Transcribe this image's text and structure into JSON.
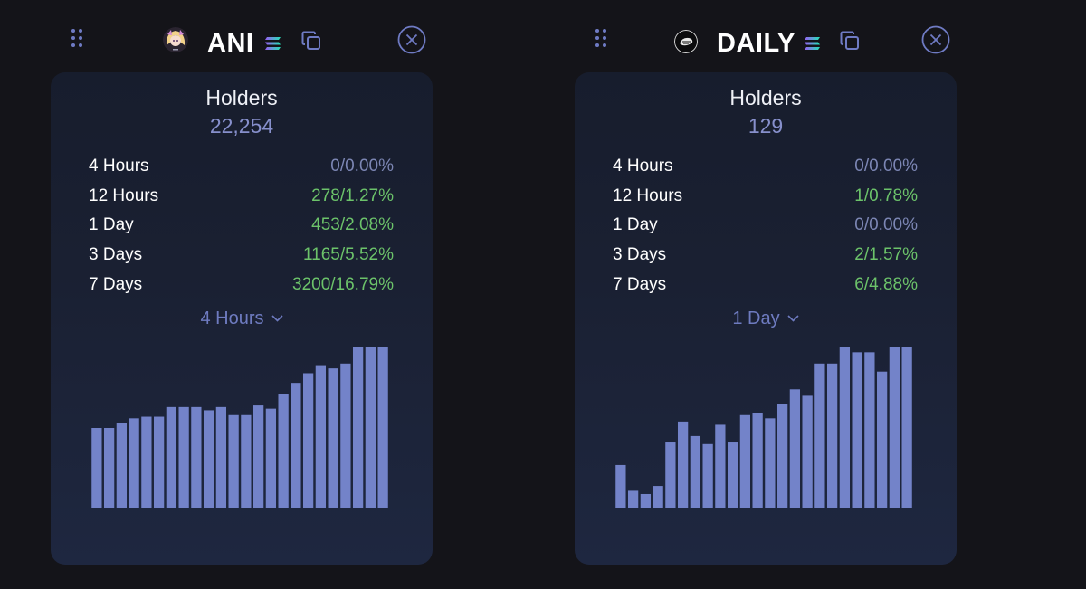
{
  "colors": {
    "background": "#141419",
    "card": "#1a2032",
    "bar": "#7383c9",
    "positive": "#6cc36a",
    "neutral": "#7c86b4",
    "accent": "#6e7bc0"
  },
  "cards": [
    {
      "token": "ANI",
      "avatar_icon": "anime-girl-avatar-icon",
      "chain_icon": "solana-icon",
      "holders_label": "Holders",
      "holders": "22,254",
      "stats": [
        {
          "period": "4 Hours",
          "value": "0/0.00%",
          "status": "neutral"
        },
        {
          "period": "12 Hours",
          "value": "278/1.27%",
          "status": "positive"
        },
        {
          "period": "1 Day",
          "value": "453/2.08%",
          "status": "positive"
        },
        {
          "period": "3 Days",
          "value": "1165/5.52%",
          "status": "positive"
        },
        {
          "period": "7 Days",
          "value": "3200/16.79%",
          "status": "positive"
        }
      ],
      "selected_period": "4 Hours",
      "chart_data": {
        "type": "bar",
        "values": [
          50,
          50,
          53,
          56,
          57,
          57,
          63,
          63,
          63,
          61,
          63,
          58,
          58,
          64,
          62,
          71,
          78,
          84,
          89,
          87,
          90,
          100,
          100,
          100
        ]
      }
    },
    {
      "token": "DAILY",
      "avatar_icon": "daily-logo-icon",
      "chain_icon": "solana-icon",
      "holders_label": "Holders",
      "holders": "129",
      "stats": [
        {
          "period": "4 Hours",
          "value": "0/0.00%",
          "status": "neutral"
        },
        {
          "period": "12 Hours",
          "value": "1/0.78%",
          "status": "positive"
        },
        {
          "period": "1 Day",
          "value": "0/0.00%",
          "status": "neutral"
        },
        {
          "period": "3 Days",
          "value": "2/1.57%",
          "status": "positive"
        },
        {
          "period": "7 Days",
          "value": "6/4.88%",
          "status": "positive"
        }
      ],
      "selected_period": "1 Day",
      "chart_data": {
        "type": "bar",
        "values": [
          27,
          11,
          9,
          14,
          41,
          54,
          45,
          40,
          52,
          41,
          58,
          59,
          56,
          65,
          74,
          70,
          90,
          90,
          100,
          97,
          97,
          85,
          100,
          100
        ]
      }
    }
  ]
}
